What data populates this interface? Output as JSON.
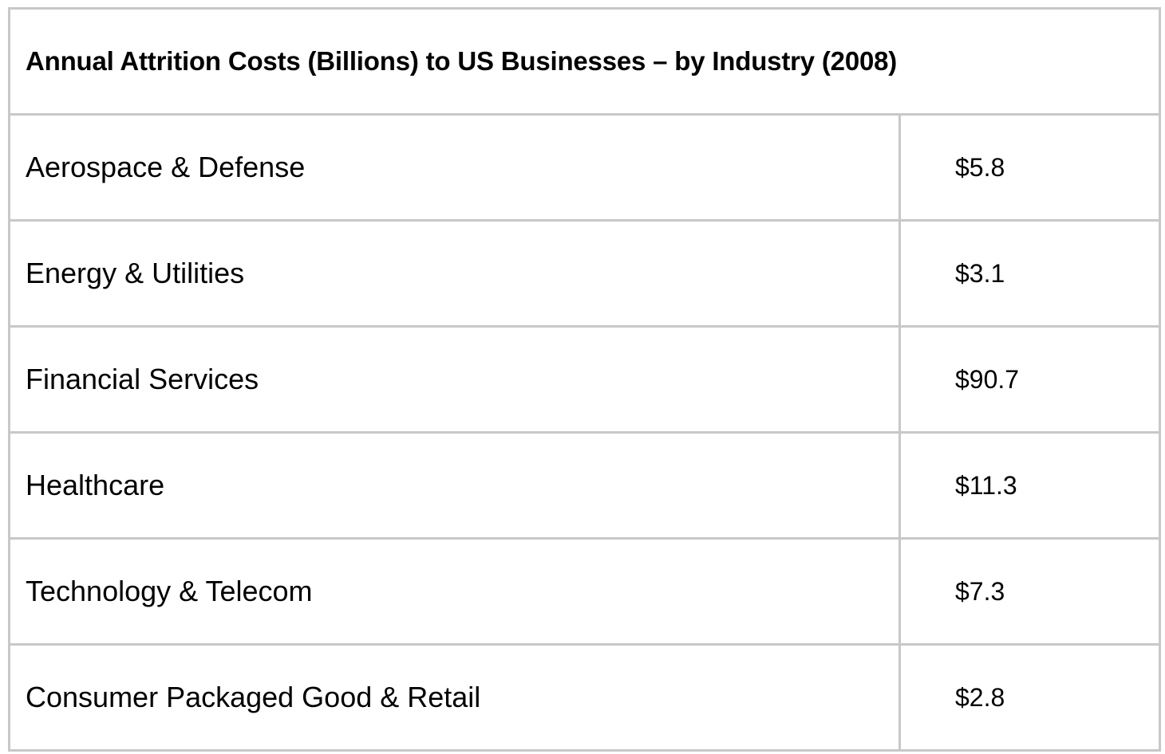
{
  "table": {
    "title": "Annual Attrition Costs (Billions) to US Businesses – by Industry (2008)",
    "rows": [
      {
        "industry": "Aerospace & Defense",
        "cost": "$5.8"
      },
      {
        "industry": "Energy & Utilities",
        "cost": "$3.1"
      },
      {
        "industry": "Financial Services",
        "cost": "$90.7"
      },
      {
        "industry": "Healthcare",
        "cost": "$11.3"
      },
      {
        "industry": "Technology & Telecom",
        "cost": "$7.3"
      },
      {
        "industry": "Consumer Packaged Good & Retail",
        "cost": "$2.8"
      }
    ]
  }
}
